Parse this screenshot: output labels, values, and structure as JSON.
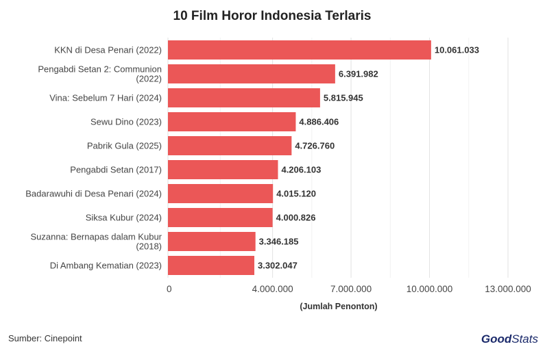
{
  "chart_data": {
    "type": "bar",
    "orientation": "horizontal",
    "title": "10 Film Horor Indonesia Terlaris",
    "xlabel": "(Jumlah Penonton)",
    "ylabel": "",
    "xlim": [
      0,
      13000000
    ],
    "x_ticks": [
      0,
      4000000,
      7000000,
      10000000,
      13000000
    ],
    "x_tick_labels": [
      "0",
      "4.000.000",
      "7.000.000",
      "10.000.000",
      "13.000.000"
    ],
    "grid": true,
    "bar_color": "#eb5757",
    "categories": [
      "KKN di Desa Penari (2022)",
      "Pengabdi Setan 2: Communion (2022)",
      "Vina: Sebelum 7 Hari (2024)",
      "Sewu Dino (2023)",
      "Pabrik Gula (2025)",
      "Pengabdi Setan (2017)",
      "Badarawuhi di Desa Penari (2024)",
      "Siksa Kubur (2024)",
      "Suzanna: Bernapas dalam Kubur (2018)",
      "Di Ambang Kematian (2023)"
    ],
    "category_lines": [
      [
        "KKN di Desa Penari (2022)"
      ],
      [
        "Pengabdi Setan 2: Communion",
        "(2022)"
      ],
      [
        "Vina: Sebelum 7 Hari (2024)"
      ],
      [
        "Sewu Dino (2023)"
      ],
      [
        "Pabrik Gula (2025)"
      ],
      [
        "Pengabdi Setan (2017)"
      ],
      [
        "Badarawuhi di Desa Penari (2024)"
      ],
      [
        "Siksa Kubur (2024)"
      ],
      [
        "Suzanna: Bernapas dalam Kubur",
        "(2018)"
      ],
      [
        "Di Ambang Kematian (2023)"
      ]
    ],
    "values": [
      10061033,
      6391982,
      5815945,
      4886406,
      4726760,
      4206103,
      4015120,
      4000826,
      3346185,
      3302047
    ],
    "value_labels": [
      "10.061.033",
      "6.391.982",
      "5.815.945",
      "4.886.406",
      "4.726.760",
      "4.206.103",
      "4.015.120",
      "4.000.826",
      "3.346.185",
      "3.302.047"
    ]
  },
  "footer": {
    "source": "Sumber: Cinepoint",
    "logo_part1": "Good",
    "logo_part2": "Stats",
    "logo_color": "#1b2a6b"
  }
}
